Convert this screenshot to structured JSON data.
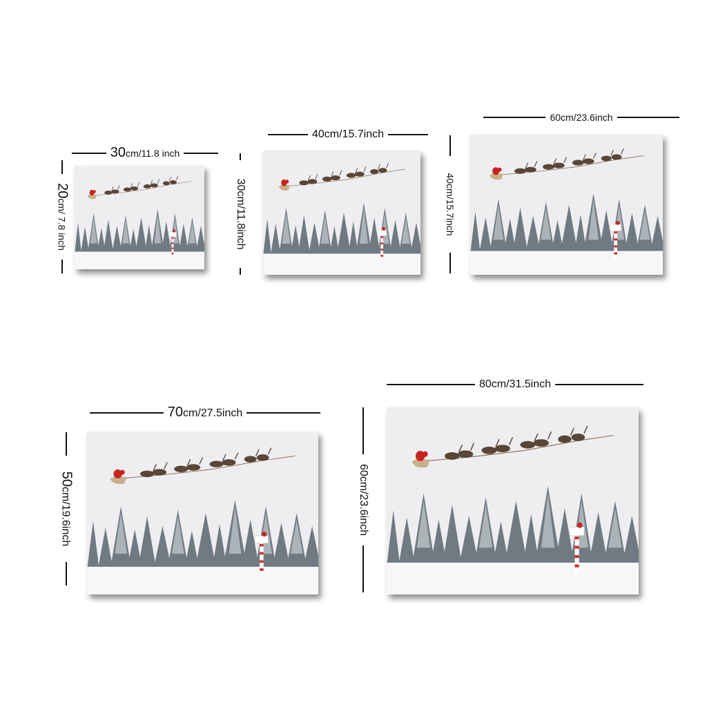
{
  "products": [
    {
      "width_label": "30",
      "width_unit": "cm/11.8 inch",
      "height_label": "20",
      "height_unit": "cm/ 7.8 inch"
    },
    {
      "width_label": "40cm/15.7inch",
      "height_label": "30cm/11.8inch"
    },
    {
      "width_label": "60cm/23.6inch",
      "height_label": "40cm/15.7inch"
    },
    {
      "width_label": "70",
      "width_unit": "cm/27.5inch",
      "height_label": "50",
      "height_unit": "cm/19.6inch"
    },
    {
      "width_label": "80cm/31.5inch",
      "height_label": "60cm/23.6inch"
    }
  ],
  "artwork": {
    "subject": "santa-sleigh-with-reindeer-over-snowy-forest",
    "colors": {
      "sky": "#eeeef1",
      "snow": "#f7f7f9",
      "tree": "#6f7a82",
      "sleigh": "#c8241f",
      "reindeer": "#5a4636",
      "pole": "#d62a2a"
    }
  }
}
